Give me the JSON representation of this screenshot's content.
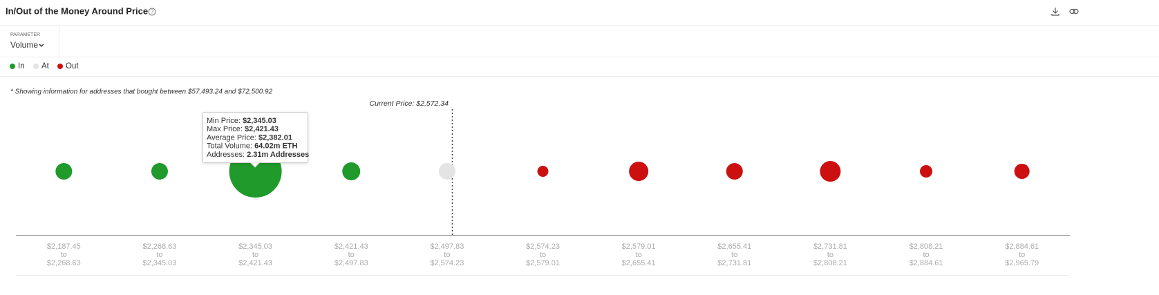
{
  "header": {
    "title": "In/Out of the Money Around Price"
  },
  "parameter": {
    "label": "PARAMETER",
    "value": "Volume"
  },
  "chart_data": {
    "type": "bubble",
    "note": "* Showing information for addresses that bought between $57,493.24 and $72,500.92",
    "annotation": "Current Price: $2,572.34",
    "range_from": [
      "$2,187.45",
      "$2,268.63",
      "$2,345.03",
      "$2,421.43",
      "$2,497.83",
      "$2,574.23",
      "$2,579.01",
      "$2,655.41",
      "$2,731.81",
      "$2,808.21",
      "$2,884.61"
    ],
    "range_word": "to",
    "range_to": [
      "$2,268.63",
      "$2,345.03",
      "$2,421.43",
      "$2,497.83",
      "$2,574.23",
      "$2,579.01",
      "$2,655.41",
      "$2,731.81",
      "$2,808.21",
      "$2,884.61",
      "$2,965.79"
    ],
    "series": [
      {
        "name": "In",
        "color": "#1f9a2b",
        "values": [
          6.4,
          6.4,
          64.02,
          7.5,
          null,
          null,
          null,
          null,
          null,
          null,
          null
        ]
      },
      {
        "name": "At",
        "color": "#e4e4e4",
        "values": [
          null,
          null,
          null,
          null,
          6.4,
          null,
          null,
          null,
          null,
          null,
          null
        ]
      },
      {
        "name": "Out",
        "color": "#cc1010",
        "values": [
          null,
          null,
          null,
          null,
          null,
          2.8,
          8.7,
          6.4,
          10,
          3.6,
          5.4
        ]
      }
    ],
    "tooltip": {
      "rows": [
        {
          "label": "Min Price:",
          "value": "$2,345.03"
        },
        {
          "label": "Max Price:",
          "value": "$2,421.43"
        },
        {
          "label": "Average Price:",
          "value": "$2,382.01"
        },
        {
          "label": "Total Volume:",
          "value": "64.02m ETH"
        },
        {
          "label": "Addresses:",
          "value": "2.31m Addresses"
        }
      ]
    }
  }
}
